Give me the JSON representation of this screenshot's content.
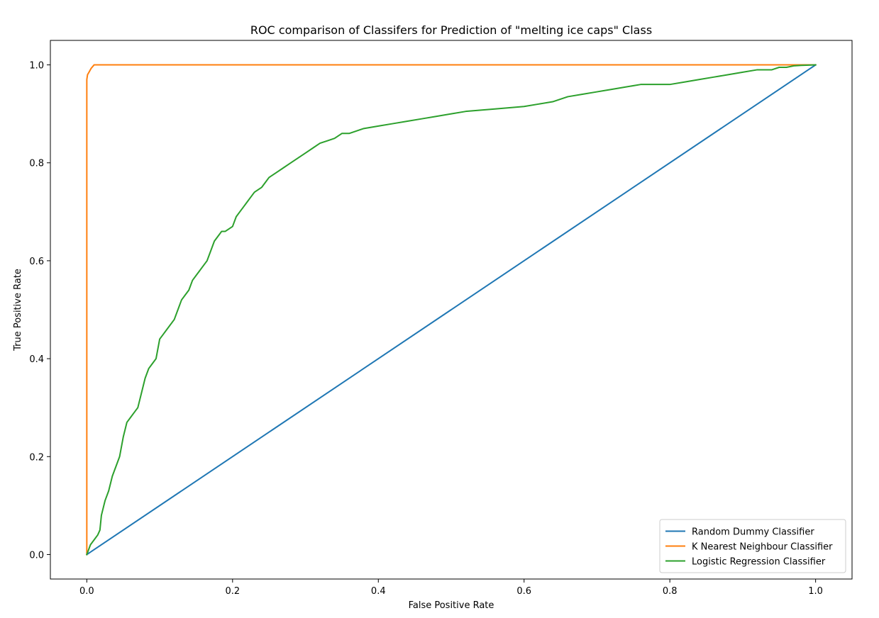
{
  "chart_data": {
    "type": "line",
    "title": "ROC comparison of Classifers for Prediction of \"melting ice caps\" Class",
    "xlabel": "False Positive Rate",
    "ylabel": "True Positive Rate",
    "xlim": [
      -0.05,
      1.05
    ],
    "ylim": [
      -0.05,
      1.05
    ],
    "xticks": [
      0.0,
      0.2,
      0.4,
      0.6,
      0.8,
      1.0
    ],
    "yticks": [
      0.0,
      0.2,
      0.4,
      0.6,
      0.8,
      1.0
    ],
    "xtick_labels": [
      "0.0",
      "0.2",
      "0.4",
      "0.6",
      "0.8",
      "1.0"
    ],
    "ytick_labels": [
      "0.0",
      "0.2",
      "0.4",
      "0.6",
      "0.8",
      "1.0"
    ],
    "grid": false,
    "legend_position": "lower-right",
    "series": [
      {
        "name": "Random Dummy Classifier",
        "color": "#1f77b4",
        "x": [
          0.0,
          1.0
        ],
        "y": [
          0.0,
          1.0
        ]
      },
      {
        "name": "K Nearest Neighbour Classifier",
        "color": "#ff7f0e",
        "x": [
          0.0,
          0.0,
          0.001,
          0.003,
          0.006,
          0.01,
          0.98,
          0.99,
          1.0
        ],
        "y": [
          0.0,
          0.97,
          0.98,
          0.985,
          0.993,
          1.0,
          1.0,
          1.0,
          1.0
        ]
      },
      {
        "name": "Logistic Regression Classifier",
        "color": "#2ca02c",
        "x": [
          0.0,
          0.005,
          0.01,
          0.015,
          0.018,
          0.02,
          0.025,
          0.03,
          0.035,
          0.04,
          0.045,
          0.05,
          0.055,
          0.06,
          0.065,
          0.07,
          0.075,
          0.08,
          0.085,
          0.09,
          0.095,
          0.1,
          0.105,
          0.11,
          0.12,
          0.125,
          0.13,
          0.135,
          0.14,
          0.145,
          0.15,
          0.155,
          0.16,
          0.165,
          0.17,
          0.175,
          0.18,
          0.185,
          0.19,
          0.2,
          0.205,
          0.21,
          0.215,
          0.22,
          0.225,
          0.23,
          0.24,
          0.245,
          0.25,
          0.26,
          0.27,
          0.28,
          0.29,
          0.3,
          0.31,
          0.32,
          0.33,
          0.34,
          0.35,
          0.36,
          0.37,
          0.38,
          0.4,
          0.42,
          0.44,
          0.46,
          0.48,
          0.5,
          0.52,
          0.56,
          0.6,
          0.62,
          0.64,
          0.66,
          0.68,
          0.7,
          0.72,
          0.74,
          0.76,
          0.8,
          0.82,
          0.84,
          0.86,
          0.88,
          0.9,
          0.92,
          0.94,
          0.95,
          0.96,
          0.97,
          0.98,
          1.0
        ],
        "y": [
          0.0,
          0.02,
          0.03,
          0.04,
          0.05,
          0.08,
          0.11,
          0.13,
          0.16,
          0.18,
          0.2,
          0.24,
          0.27,
          0.28,
          0.29,
          0.3,
          0.33,
          0.36,
          0.38,
          0.39,
          0.4,
          0.44,
          0.45,
          0.46,
          0.48,
          0.5,
          0.52,
          0.53,
          0.54,
          0.56,
          0.57,
          0.58,
          0.59,
          0.6,
          0.62,
          0.64,
          0.65,
          0.66,
          0.66,
          0.67,
          0.69,
          0.7,
          0.71,
          0.72,
          0.73,
          0.74,
          0.75,
          0.76,
          0.77,
          0.78,
          0.79,
          0.8,
          0.81,
          0.82,
          0.83,
          0.84,
          0.845,
          0.85,
          0.86,
          0.86,
          0.865,
          0.87,
          0.875,
          0.88,
          0.885,
          0.89,
          0.895,
          0.9,
          0.905,
          0.91,
          0.915,
          0.92,
          0.925,
          0.935,
          0.94,
          0.945,
          0.95,
          0.955,
          0.96,
          0.96,
          0.965,
          0.97,
          0.975,
          0.98,
          0.985,
          0.99,
          0.99,
          0.995,
          0.995,
          0.998,
          0.999,
          1.0
        ]
      }
    ]
  }
}
